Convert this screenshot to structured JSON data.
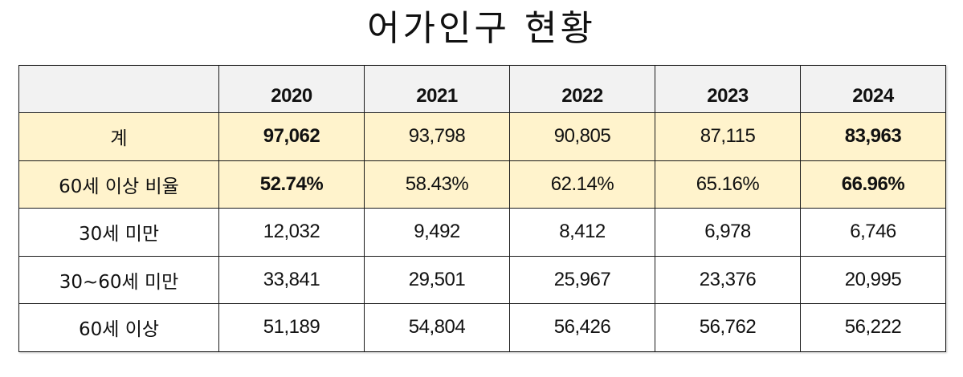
{
  "title": "어가인구 현황",
  "table": {
    "columns": [
      "",
      "2020",
      "2021",
      "2022",
      "2023",
      "2024"
    ],
    "rows": [
      {
        "label": "계",
        "values": [
          "97,062",
          "93,798",
          "90,805",
          "87,115",
          "83,963"
        ],
        "highlight": true,
        "bold_cells": [
          0,
          4
        ]
      },
      {
        "label": "60세 이상 비율",
        "values": [
          "52.74%",
          "58.43%",
          "62.14%",
          "65.16%",
          "66.96%"
        ],
        "highlight": true,
        "bold_cells": [
          0,
          4
        ]
      },
      {
        "label": "30세 미만",
        "values": [
          "12,032",
          "9,492",
          "8,412",
          "6,978",
          "6,746"
        ],
        "highlight": false
      },
      {
        "label": "30~60세 미만",
        "values": [
          "33,841",
          "29,501",
          "25,967",
          "23,376",
          "20,995"
        ],
        "highlight": false
      },
      {
        "label": "60세 이상",
        "values": [
          "51,189",
          "54,804",
          "56,426",
          "56,762",
          "56,222"
        ],
        "highlight": false
      }
    ]
  },
  "colors": {
    "header_bg": "#f2f2f2",
    "highlight_bg": "#fff3cc",
    "border": "#1a1a1a"
  }
}
